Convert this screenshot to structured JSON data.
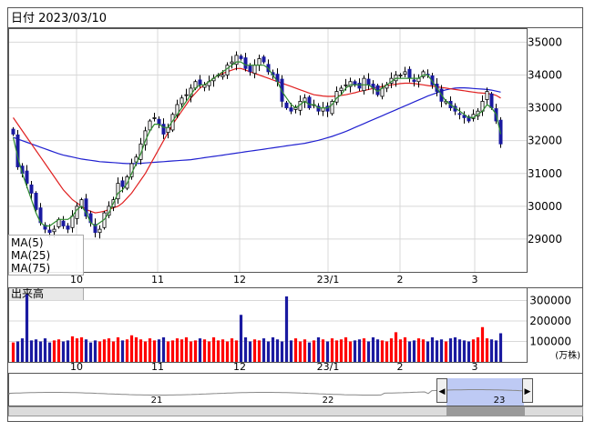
{
  "header": {
    "date_label": "日付 2023/03/10"
  },
  "colors": {
    "up": "#ff0000",
    "down": "#1a1aa0",
    "ma5": "#2e8b2e",
    "ma25": "#e02020",
    "ma75": "#2020d0",
    "frame": "#555555",
    "grid": "#d8d8d8",
    "navigator_fill": "#a8b8f0"
  },
  "legend": [
    {
      "label": "MA(5)",
      "color": "#2e8b2e"
    },
    {
      "label": "MA(25)",
      "color": "#e02020"
    },
    {
      "label": "MA(75)",
      "color": "#2020d0"
    }
  ],
  "volume_panel": {
    "title": "出来高",
    "unit": "(万株)"
  },
  "navigator": {
    "year_labels": [
      "21",
      "22",
      "23"
    ],
    "left_arrow": "◀",
    "right_arrow": "▶"
  },
  "chart_data": [
    {
      "type": "candlestick",
      "title": "",
      "x_tick_labels": [
        "10",
        "11",
        "12",
        "23/1",
        "2",
        "3"
      ],
      "y_tick_labels": [
        "29000",
        "30000",
        "31000",
        "32000",
        "33000",
        "34000",
        "35000"
      ],
      "ylim": [
        28000,
        35400
      ],
      "grid": true,
      "legend_position": "bottom-left",
      "sessions": 108,
      "close_series": [
        32200,
        31200,
        31000,
        30700,
        30400,
        29900,
        29500,
        29300,
        29200,
        29300,
        29600,
        29400,
        29300,
        29700,
        30000,
        30200,
        29700,
        29500,
        29200,
        29300,
        29800,
        30000,
        30200,
        30700,
        30600,
        30900,
        31300,
        31500,
        31900,
        32300,
        32600,
        32700,
        32500,
        32200,
        32400,
        32800,
        33100,
        33300,
        33400,
        33600,
        33800,
        33700,
        33700,
        33800,
        33900,
        34000,
        34000,
        34300,
        34400,
        34600,
        34500,
        34200,
        34100,
        34300,
        34500,
        34400,
        34100,
        34000,
        33800,
        33200,
        33000,
        32900,
        33000,
        33200,
        33300,
        33000,
        33100,
        32900,
        33000,
        32900,
        33200,
        33500,
        33600,
        33700,
        33800,
        33700,
        33600,
        33900,
        33700,
        33600,
        33400,
        33600,
        33700,
        33900,
        34000,
        34000,
        34100,
        33900,
        33800,
        33900,
        34100,
        34000,
        33700,
        33500,
        33200,
        33200,
        33000,
        32900,
        32800,
        32700,
        32600,
        32800,
        32900,
        33200,
        33500,
        33000,
        32600,
        31900
      ],
      "ma5": [
        32100,
        31500,
        31000,
        30600,
        30200,
        29800,
        29500,
        29400,
        29400,
        29500,
        29600,
        29600,
        29600,
        29700,
        29900,
        30000,
        29800,
        29500,
        29400,
        29500,
        29600,
        29800,
        30100,
        30400,
        30500,
        30700,
        31000,
        31300,
        31600,
        32000,
        32300,
        32500,
        32500,
        32400,
        32400,
        32600,
        32800,
        33000,
        33200,
        33400,
        33600,
        33700,
        33700,
        33800,
        33900,
        34000,
        34100,
        34200,
        34300,
        34400,
        34400,
        34300,
        34300,
        34300,
        34300,
        34300,
        34200,
        34000,
        33800,
        33500,
        33300,
        33100,
        33000,
        33100,
        33200,
        33100,
        33100,
        33000,
        33000,
        33000,
        33100,
        33300,
        33400,
        33600,
        33700,
        33700,
        33700,
        33700,
        33700,
        33600,
        33500,
        33600,
        33700,
        33800,
        33900,
        33900,
        33900,
        33900,
        33900,
        33900,
        34000,
        34000,
        33800,
        33600,
        33400,
        33200,
        33100,
        33000,
        32900,
        32800,
        32700,
        32700,
        32800,
        32900,
        33100,
        33000,
        32800,
        32200
      ],
      "ma25": [
        32700,
        32500,
        32300,
        32100,
        31900,
        31700,
        31500,
        31300,
        31100,
        30900,
        30700,
        30500,
        30350,
        30200,
        30100,
        30000,
        29900,
        29850,
        29800,
        29820,
        29850,
        29900,
        29950,
        30000,
        30100,
        30250,
        30400,
        30600,
        30800,
        31000,
        31250,
        31500,
        31750,
        32000,
        32250,
        32500,
        32700,
        32900,
        33100,
        33300,
        33450,
        33600,
        33700,
        33800,
        33900,
        34000,
        34050,
        34100,
        34150,
        34200,
        34200,
        34150,
        34100,
        34050,
        34000,
        33950,
        33900,
        33850,
        33800,
        33750,
        33700,
        33650,
        33600,
        33550,
        33500,
        33450,
        33400,
        33380,
        33360,
        33350,
        33350,
        33360,
        33380,
        33400,
        33430,
        33460,
        33500,
        33530,
        33560,
        33590,
        33620,
        33650,
        33680,
        33700,
        33720,
        33740,
        33750,
        33750,
        33740,
        33720,
        33700,
        33680,
        33660,
        33640,
        33620,
        33600,
        33580,
        33560,
        33540,
        33520,
        33500,
        33480,
        33460,
        33450,
        33440,
        33420,
        33380,
        33300
      ],
      "ma75": [
        32100,
        32050,
        32000,
        31950,
        31900,
        31850,
        31800,
        31750,
        31700,
        31650,
        31600,
        31560,
        31530,
        31500,
        31470,
        31440,
        31420,
        31400,
        31380,
        31360,
        31350,
        31340,
        31330,
        31320,
        31310,
        31300,
        31300,
        31300,
        31310,
        31320,
        31330,
        31340,
        31350,
        31360,
        31370,
        31380,
        31390,
        31400,
        31410,
        31420,
        31440,
        31460,
        31480,
        31500,
        31520,
        31540,
        31560,
        31580,
        31600,
        31620,
        31640,
        31660,
        31680,
        31700,
        31720,
        31740,
        31760,
        31780,
        31800,
        31820,
        31840,
        31860,
        31880,
        31900,
        31920,
        31950,
        31980,
        32010,
        32050,
        32090,
        32130,
        32180,
        32230,
        32280,
        32340,
        32400,
        32460,
        32520,
        32580,
        32640,
        32700,
        32760,
        32820,
        32880,
        32940,
        33000,
        33060,
        33120,
        33180,
        33240,
        33300,
        33360,
        33410,
        33460,
        33510,
        33550,
        33580,
        33600,
        33610,
        33610,
        33600,
        33590,
        33580,
        33570,
        33560,
        33540,
        33510,
        33480
      ]
    },
    {
      "type": "bar",
      "title": "出来高",
      "unit": "万株",
      "y_tick_labels": [
        "100000",
        "200000",
        "300000"
      ],
      "ylim": [
        0,
        360000
      ],
      "values": [
        95000,
        100000,
        115000,
        330000,
        105000,
        110000,
        100000,
        115000,
        95000,
        105000,
        110000,
        100000,
        105000,
        125000,
        115000,
        120000,
        110000,
        95000,
        105000,
        100000,
        110000,
        115000,
        100000,
        120000,
        105000,
        110000,
        130000,
        120000,
        110000,
        100000,
        115000,
        105000,
        110000,
        120000,
        100000,
        105000,
        115000,
        110000,
        120000,
        100000,
        105000,
        115000,
        110000,
        100000,
        120000,
        105000,
        110000,
        100000,
        115000,
        105000,
        230000,
        120000,
        100000,
        110000,
        105000,
        115000,
        100000,
        120000,
        110000,
        100000,
        320000,
        105000,
        115000,
        100000,
        110000,
        95000,
        105000,
        120000,
        110000,
        100000,
        115000,
        105000,
        110000,
        120000,
        100000,
        105000,
        110000,
        115000,
        100000,
        120000,
        110000,
        105000,
        100000,
        115000,
        145000,
        110000,
        120000,
        100000,
        105000,
        115000,
        110000,
        100000,
        120000,
        105000,
        110000,
        100000,
        115000,
        120000,
        110000,
        105000,
        100000,
        110000,
        120000,
        170000,
        115000,
        110000,
        105000,
        140000
      ]
    }
  ]
}
